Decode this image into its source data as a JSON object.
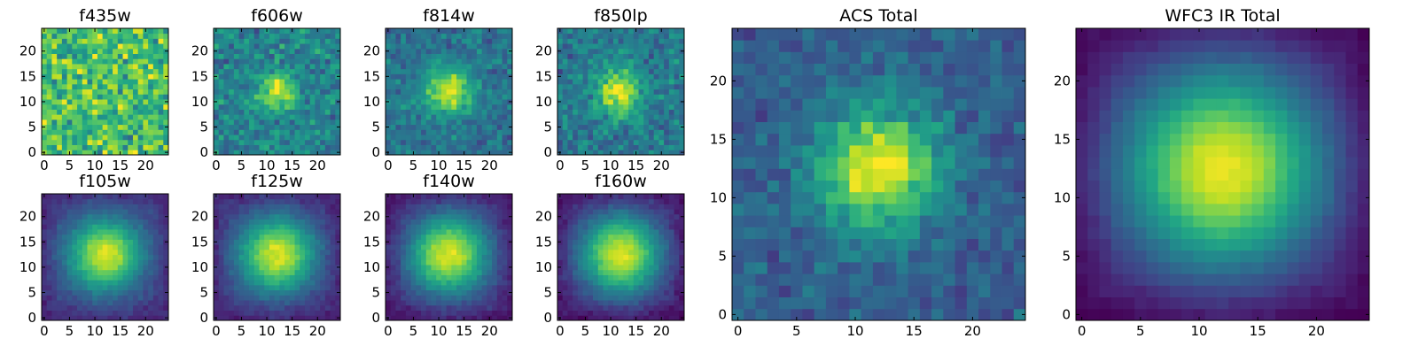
{
  "chart_data": [
    {
      "type": "heatmap",
      "title": "f435w",
      "xticks": [
        0,
        5,
        10,
        15,
        20
      ],
      "yticks": [
        0,
        5,
        10,
        15,
        20
      ],
      "xlim": [
        -0.5,
        24.5
      ],
      "ylim": [
        -0.5,
        24.5
      ],
      "grid_size": 25,
      "center": [
        12,
        12
      ],
      "profile": {
        "peak": 0.72,
        "floor": 0.7,
        "sigma": 4,
        "noise": 0.28
      },
      "colormap": "viridis"
    },
    {
      "type": "heatmap",
      "title": "f606w",
      "xticks": [
        0,
        5,
        10,
        15,
        20
      ],
      "yticks": [
        0,
        5,
        10,
        15,
        20
      ],
      "xlim": [
        -0.5,
        24.5
      ],
      "ylim": [
        -0.5,
        24.5
      ],
      "grid_size": 25,
      "center": [
        12,
        12
      ],
      "profile": {
        "peak": 0.95,
        "floor": 0.45,
        "sigma": 2.6,
        "noise": 0.18
      },
      "colormap": "viridis"
    },
    {
      "type": "heatmap",
      "title": "f814w",
      "xticks": [
        0,
        5,
        10,
        15,
        20
      ],
      "yticks": [
        0,
        5,
        10,
        15,
        20
      ],
      "xlim": [
        -0.5,
        24.5
      ],
      "ylim": [
        -0.5,
        24.5
      ],
      "grid_size": 25,
      "center": [
        12,
        12
      ],
      "profile": {
        "peak": 0.95,
        "floor": 0.38,
        "sigma": 3.2,
        "noise": 0.14
      },
      "colormap": "viridis"
    },
    {
      "type": "heatmap",
      "title": "f850lp",
      "xticks": [
        0,
        5,
        10,
        15,
        20
      ],
      "yticks": [
        0,
        5,
        10,
        15,
        20
      ],
      "xlim": [
        -0.5,
        24.5
      ],
      "ylim": [
        -0.5,
        24.5
      ],
      "grid_size": 25,
      "center": [
        11.5,
        12
      ],
      "profile": {
        "peak": 0.95,
        "floor": 0.4,
        "sigma": 3.2,
        "noise": 0.16
      },
      "colormap": "viridis"
    },
    {
      "type": "heatmap",
      "title": "ACS Total",
      "xticks": [
        0,
        5,
        10,
        15,
        20
      ],
      "yticks": [
        0,
        5,
        10,
        15,
        20
      ],
      "xlim": [
        -0.5,
        24.5
      ],
      "ylim": [
        -0.5,
        24.5
      ],
      "grid_size": 25,
      "center": [
        12,
        12.5
      ],
      "profile": {
        "peak": 0.98,
        "floor": 0.3,
        "sigma": 3.6,
        "noise": 0.12
      },
      "colormap": "viridis"
    },
    {
      "type": "heatmap",
      "title": "f105w",
      "xticks": [
        0,
        5,
        10,
        15,
        20
      ],
      "yticks": [
        0,
        5,
        10,
        15,
        20
      ],
      "xlim": [
        -0.5,
        24.5
      ],
      "ylim": [
        -0.5,
        24.5
      ],
      "grid_size": 25,
      "center": [
        12,
        12.5
      ],
      "profile": {
        "peak": 0.95,
        "floor": 0.18,
        "sigma": 5.0,
        "noise": 0.05
      },
      "colormap": "viridis"
    },
    {
      "type": "heatmap",
      "title": "f125w",
      "xticks": [
        0,
        5,
        10,
        15,
        20
      ],
      "yticks": [
        0,
        5,
        10,
        15,
        20
      ],
      "xlim": [
        -0.5,
        24.5
      ],
      "ylim": [
        -0.5,
        24.5
      ],
      "grid_size": 25,
      "center": [
        12,
        12.5
      ],
      "profile": {
        "peak": 0.95,
        "floor": 0.15,
        "sigma": 5.3,
        "noise": 0.05
      },
      "colormap": "viridis"
    },
    {
      "type": "heatmap",
      "title": "f140w",
      "xticks": [
        0,
        5,
        10,
        15,
        20
      ],
      "yticks": [
        0,
        5,
        10,
        15,
        20
      ],
      "xlim": [
        -0.5,
        24.5
      ],
      "ylim": [
        -0.5,
        24.5
      ],
      "grid_size": 25,
      "center": [
        12,
        12.5
      ],
      "profile": {
        "peak": 0.95,
        "floor": 0.12,
        "sigma": 5.5,
        "noise": 0.05
      },
      "colormap": "viridis"
    },
    {
      "type": "heatmap",
      "title": "f160w",
      "xticks": [
        0,
        5,
        10,
        15,
        20
      ],
      "yticks": [
        0,
        5,
        10,
        15,
        20
      ],
      "xlim": [
        -0.5,
        24.5
      ],
      "ylim": [
        -0.5,
        24.5
      ],
      "grid_size": 25,
      "center": [
        12,
        12.5
      ],
      "profile": {
        "peak": 0.95,
        "floor": 0.1,
        "sigma": 5.6,
        "noise": 0.05
      },
      "colormap": "viridis"
    },
    {
      "type": "heatmap",
      "title": "WFC3 IR Total",
      "xticks": [
        0,
        5,
        10,
        15,
        20
      ],
      "yticks": [
        0,
        5,
        10,
        15,
        20
      ],
      "xlim": [
        -0.5,
        24.5
      ],
      "ylim": [
        -0.5,
        24.5
      ],
      "grid_size": 25,
      "center": [
        12,
        12.5
      ],
      "profile": {
        "peak": 0.97,
        "floor": 0.06,
        "sigma": 6.0,
        "noise": 0.02
      },
      "colormap": "viridis"
    }
  ]
}
